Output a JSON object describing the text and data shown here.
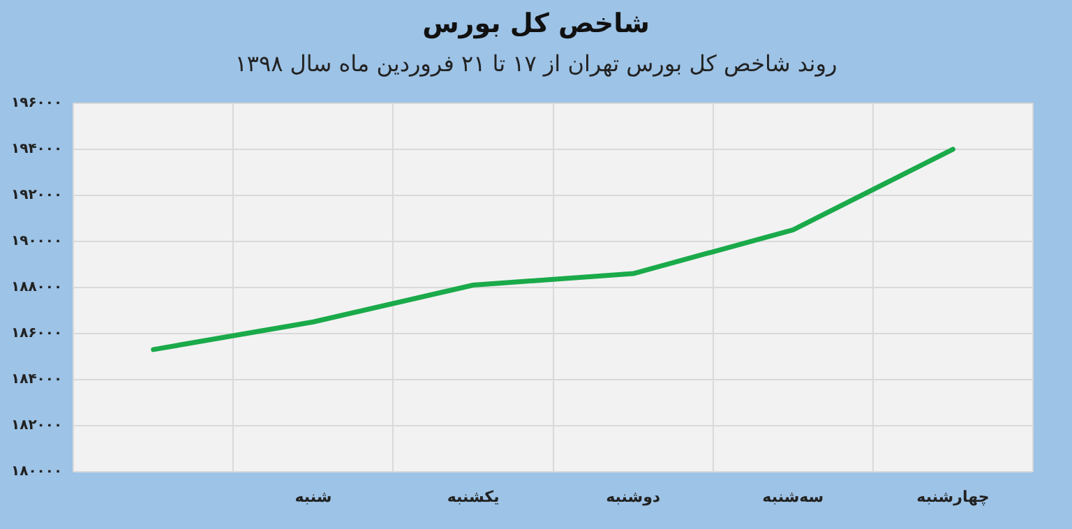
{
  "chart_data": {
    "type": "line",
    "title": "شاخص کل بورس",
    "subtitle": "روند شاخص کل بورس تهران از ۱۷ تا ۲۱ فروردین ماه سال ۱۳۹۸",
    "categories": [
      null,
      "شنبه",
      "یکشنبه",
      "دوشنبه",
      "سه‌شنبه",
      "چهارشنبه"
    ],
    "series": [
      {
        "color": "#1aaa4a",
        "values": [
          185300,
          186500,
          188100,
          188600,
          190500,
          194000
        ]
      }
    ],
    "ylim": [
      180000,
      196000
    ],
    "yticks": [
      {
        "value": 180000,
        "label": "۱۸۰۰۰۰"
      },
      {
        "value": 182000,
        "label": "۱۸۲۰۰۰"
      },
      {
        "value": 184000,
        "label": "۱۸۴۰۰۰"
      },
      {
        "value": 186000,
        "label": "۱۸۶۰۰۰"
      },
      {
        "value": 188000,
        "label": "۱۸۸۰۰۰"
      },
      {
        "value": 190000,
        "label": "۱۹۰۰۰۰"
      },
      {
        "value": 192000,
        "label": "۱۹۲۰۰۰"
      },
      {
        "value": 194000,
        "label": "۱۹۴۰۰۰"
      },
      {
        "value": 196000,
        "label": "۱۹۶۰۰۰"
      }
    ],
    "grid": true,
    "marker": "none",
    "line_style": "solid"
  }
}
